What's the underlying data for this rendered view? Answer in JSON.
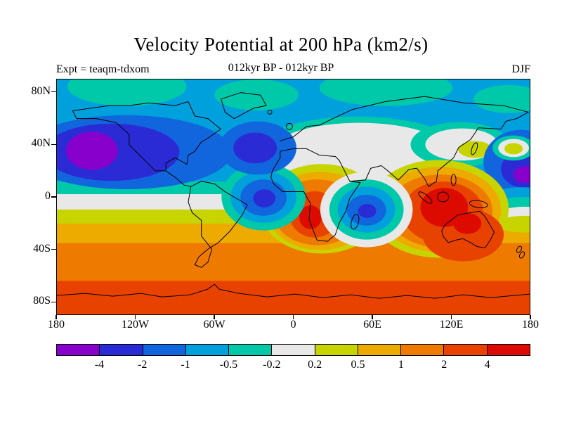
{
  "header": {
    "title": "Velocity Potential at 200 hPa (km2/s)",
    "experiment": "Expt = teaqm-tdxom",
    "period": "012kyr BP - 012kyr BP",
    "season": "DJF"
  },
  "chart_data": {
    "type": "heatmap",
    "subtype": "filled-contour world map",
    "title": "Velocity Potential at 200 hPa (km2/s)",
    "subtitle": "012kyr BP - 012kyr BP",
    "experiment": "teaqm-tdxom",
    "season": "DJF",
    "variable": "velocity potential",
    "pressure_level": "200 hPa",
    "units": "km2/s",
    "projection": "equirectangular, 90N-90S, 180W-180E, coastlines overlaid in black",
    "x_ticks": [
      "180",
      "120W",
      "60W",
      "0",
      "60E",
      "120E",
      "180"
    ],
    "y_ticks": [
      "80N",
      "40N",
      "0",
      "40S",
      "80S"
    ],
    "contour_levels": [
      -4,
      -2,
      -1,
      -0.5,
      -0.2,
      0.2,
      0.5,
      1,
      2,
      4
    ],
    "colorbar_labels": [
      "-4",
      "-2",
      "-1",
      "-0.5",
      "-0.2",
      "0.2",
      "0.5",
      "1",
      "2",
      "4"
    ],
    "palette": [
      "#8800CC",
      "#2B2BD5",
      "#1166DD",
      "#00A0DC",
      "#00C9A9",
      "#E8E8E8",
      "#C8D400",
      "#EDAB00",
      "#EE7A00",
      "#E84200",
      "#DD0A00"
    ],
    "legend_position": "horizontal colorbar below map",
    "features": [
      {
        "region": "North Pacific ~30N 170W",
        "value": "< -4 (purple minimum)"
      },
      {
        "region": "Tropical west Pacific ~12N 150E",
        "value": "< -4 (purple minimum)"
      },
      {
        "region": "North Pacific / North America 30-45N band",
        "value": "-4 to -1 (blue band)"
      },
      {
        "region": "North Atlantic ~40N 45W",
        "value": "-4 to -2"
      },
      {
        "region": "Equatorial South America ~0 65W",
        "value": "-4 to -2 (blue cell)"
      },
      {
        "region": "Western Indian Ocean ~5S 55E",
        "value": "-2 to -1 (blue cell ringed by cyan/white)"
      },
      {
        "region": "Arctic band 60-90N",
        "value": "-1 to -0.2 (cyan/teal)"
      },
      {
        "region": "Europe / Sahara / Middle East / East Asia ~40N",
        "value": "-0.2 to 0.2 (near-zero white band)"
      },
      {
        "region": "Equatorial Africa ~10S 15E",
        "value": "> 4 (red maximum core)"
      },
      {
        "region": "Bay of Bengal to north Australia ~5S 110E",
        "value": "> 4 (red maximum core)"
      },
      {
        "region": "Southern mid-latitudes 30-55S",
        "value": "0.5 to 2 (amber/orange band)"
      },
      {
        "region": "Antarctic 60-90S",
        "value": "2 to 4 (deep orange)"
      }
    ]
  }
}
